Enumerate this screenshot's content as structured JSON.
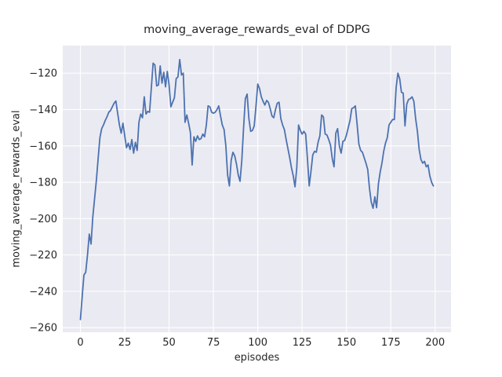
{
  "chart_data": {
    "type": "line",
    "title": "moving_average_rewards_eval of DDPG",
    "xlabel": "episodes",
    "ylabel": "moving_average_rewards_eval",
    "x_ticks": [
      0,
      25,
      50,
      75,
      100,
      125,
      150,
      175,
      200
    ],
    "y_ticks": [
      -260,
      -240,
      -220,
      -200,
      -180,
      -160,
      -140,
      -120
    ],
    "xlim": [
      -9.95,
      208.95
    ],
    "ylim": [
      -262.5,
      -104.8
    ],
    "grid": true,
    "legend": false,
    "plot_bg_color": "#eaeaf2",
    "grid_color": "#ffffff",
    "line_color": "#4c72b0",
    "text_color": "#262626",
    "series": [
      {
        "name": "moving_average_rewards_eval",
        "x_start": 0,
        "x_step": 1,
        "values": [
          -255.5,
          -243,
          -231,
          -229.5,
          -220,
          -208.5,
          -214,
          -199,
          -189,
          -179,
          -167,
          -155.5,
          -150.5,
          -148.5,
          -146,
          -144,
          -141.5,
          -140.5,
          -138.5,
          -136.5,
          -135.3,
          -142,
          -148.5,
          -153,
          -147.5,
          -154.5,
          -161,
          -158.5,
          -162,
          -156.5,
          -164,
          -158,
          -162.5,
          -147,
          -142.5,
          -144.5,
          -133,
          -142.5,
          -141,
          -141.5,
          -128,
          -114.5,
          -115.5,
          -127,
          -126.5,
          -116,
          -125.5,
          -119.5,
          -127.5,
          -119,
          -126.5,
          -138.5,
          -136,
          -133.5,
          -123,
          -122,
          -112.5,
          -121,
          -120,
          -147,
          -143,
          -147.5,
          -152.5,
          -170.5,
          -155,
          -157.5,
          -154.5,
          -156.5,
          -156,
          -153.5,
          -155,
          -148.5,
          -138,
          -138.5,
          -141.5,
          -142,
          -141.5,
          -140,
          -138,
          -143.5,
          -148.5,
          -151,
          -160,
          -176,
          -182,
          -168,
          -163.5,
          -165.5,
          -170,
          -176,
          -179.5,
          -168,
          -150,
          -134,
          -131.5,
          -145,
          -152,
          -151.5,
          -149,
          -138,
          -126,
          -128.5,
          -133,
          -135.5,
          -137.5,
          -135,
          -136,
          -139.5,
          -143.5,
          -144.5,
          -140,
          -136.5,
          -136,
          -145,
          -148.5,
          -151,
          -156.5,
          -161.5,
          -166.5,
          -172,
          -176.5,
          -182.5,
          -172,
          -148.5,
          -151.5,
          -153.5,
          -152,
          -153.5,
          -167,
          -182,
          -174,
          -165,
          -163,
          -163.5,
          -158,
          -154.5,
          -143,
          -144,
          -153.5,
          -154,
          -156.5,
          -159.5,
          -167,
          -171.5,
          -153,
          -150.5,
          -160,
          -164,
          -157.5,
          -157,
          -154,
          -150,
          -146,
          -139.5,
          -139,
          -138,
          -148,
          -159,
          -162.5,
          -163.5,
          -166.5,
          -169.5,
          -173,
          -183.5,
          -191,
          -194.3,
          -188,
          -194,
          -181,
          -174.5,
          -169.5,
          -163,
          -158.5,
          -155.5,
          -148.5,
          -147,
          -145.5,
          -145.5,
          -128,
          -120,
          -123,
          -130.5,
          -131,
          -149,
          -137,
          -134.5,
          -134,
          -133,
          -135.5,
          -145,
          -152,
          -162,
          -167.5,
          -169.5,
          -168.5,
          -171.5,
          -170.5,
          -176.5,
          -180,
          -182
        ]
      }
    ]
  }
}
